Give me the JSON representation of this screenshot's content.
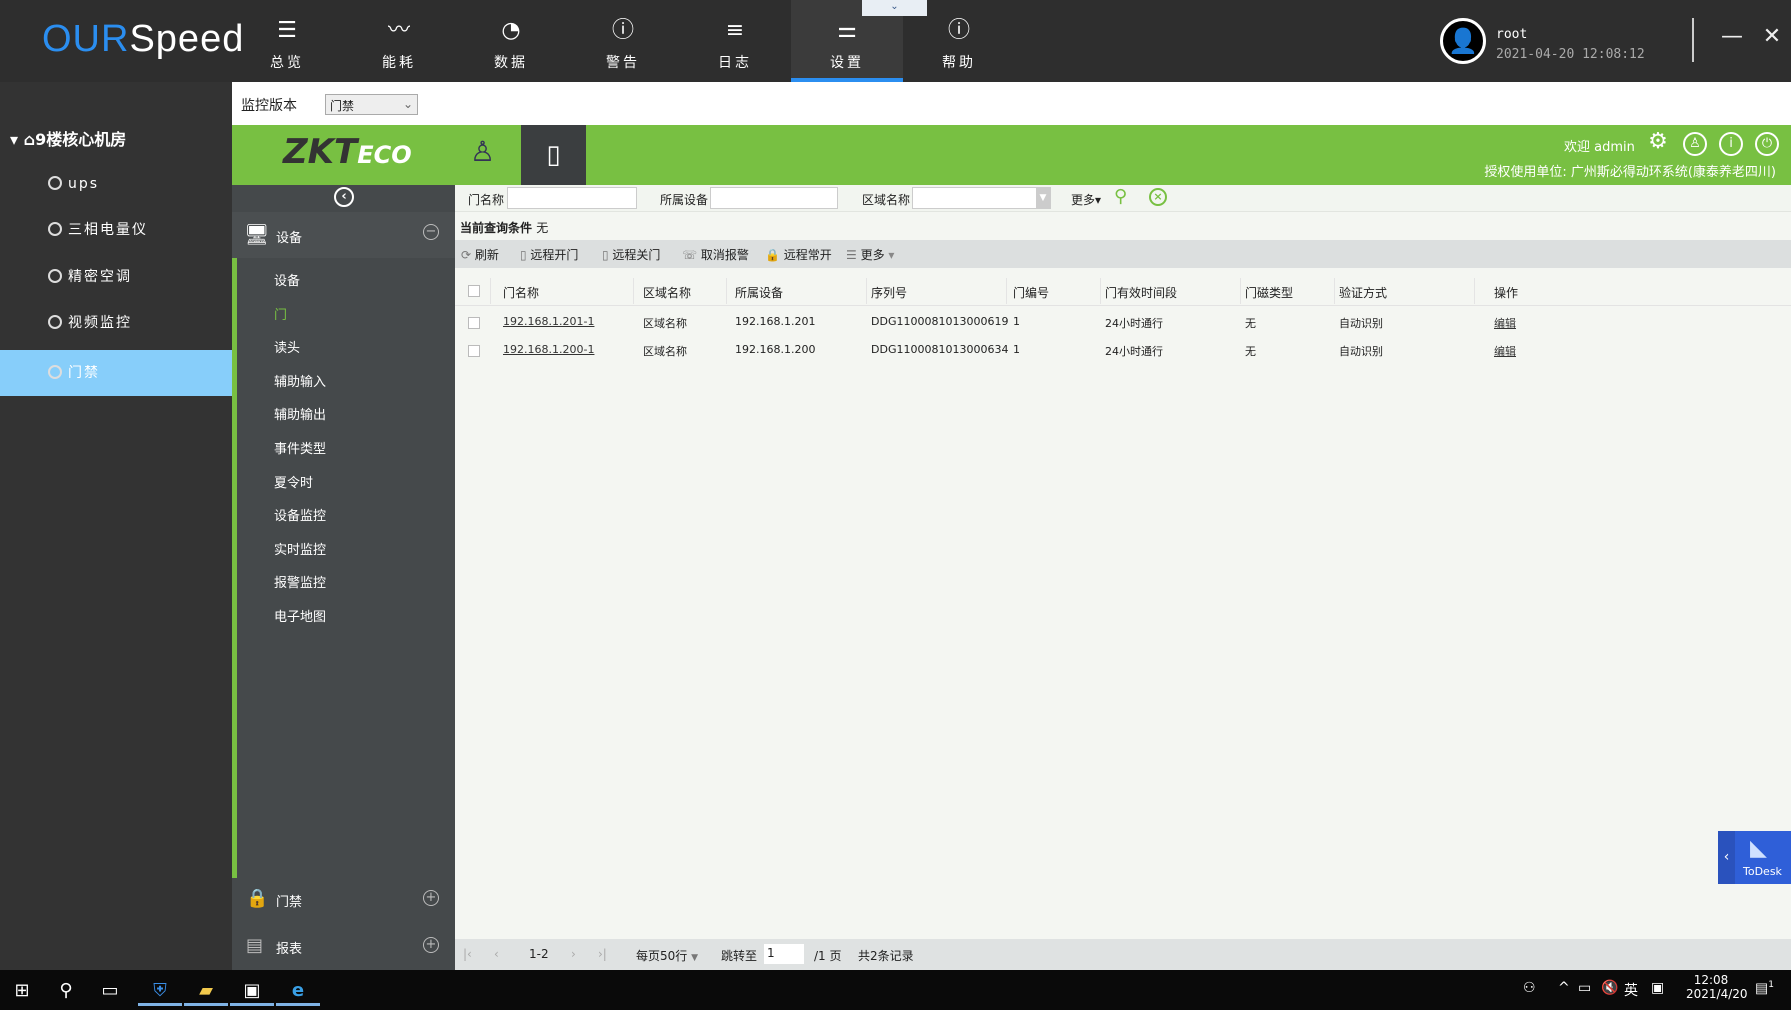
{
  "app": {
    "logo_our": "OUR",
    "logo_speed": "Speed"
  },
  "nav": [
    {
      "label": "总览",
      "icon": "list-icon"
    },
    {
      "label": "能耗",
      "icon": "pulse-icon"
    },
    {
      "label": "数据",
      "icon": "gauge-icon"
    },
    {
      "label": "警告",
      "icon": "alert-icon"
    },
    {
      "label": "日志",
      "icon": "log-icon"
    },
    {
      "label": "设置",
      "icon": "sliders-icon",
      "active": true
    },
    {
      "label": "帮助",
      "icon": "info-icon"
    }
  ],
  "user": {
    "name": "root",
    "datetime": "2021-04-20 12:08:12"
  },
  "sidebar": {
    "site": "9楼核心机房",
    "items": [
      {
        "label": "ups"
      },
      {
        "label": "三相电量仪"
      },
      {
        "label": "精密空调"
      },
      {
        "label": "视频监控"
      },
      {
        "label": "门禁",
        "active": true
      }
    ]
  },
  "version": {
    "label": "监控版本",
    "selected": "门禁"
  },
  "zk": {
    "brand_zk": "ZKT",
    "brand_eco": "ECO",
    "welcome": "欢迎 admin",
    "license": "授权使用单位: 广州斯必得动环系统(康泰养老四川)"
  },
  "panel": {
    "device_header": "设备",
    "sub_items": [
      "设备",
      "门",
      "读头",
      "辅助输入",
      "辅助输出",
      "事件类型",
      "夏令时",
      "设备监控",
      "实时监控",
      "报警监控",
      "电子地图"
    ],
    "active_sub": "门",
    "sections": [
      "门禁",
      "报表"
    ]
  },
  "filter": {
    "door_name": "门名称",
    "device": "所属设备",
    "area": "区域名称",
    "more": "更多▾",
    "condition_label": "当前查询条件",
    "condition_value": "无"
  },
  "toolbar": [
    "刷新",
    "远程开门",
    "远程关门",
    "取消报警",
    "远程常开",
    "更多"
  ],
  "table": {
    "headers": [
      "门名称",
      "区域名称",
      "所属设备",
      "序列号",
      "门编号",
      "门有效时间段",
      "门磁类型",
      "验证方式",
      "操作"
    ],
    "rows": [
      [
        "192.168.1.201-1",
        "区域名称",
        "192.168.1.201",
        "DDG1100081013000619",
        "1",
        "24小时通行",
        "无",
        "自动识别",
        "编辑"
      ],
      [
        "192.168.1.200-1",
        "区域名称",
        "192.168.1.200",
        "DDG1100081013000634",
        "1",
        "24小时通行",
        "无",
        "自动识别",
        "编辑"
      ]
    ]
  },
  "pager": {
    "range": "1-2",
    "per_page": "每页50行",
    "jump_label": "跳转至",
    "page_value": "1",
    "total_pages": "/1 页",
    "total": "共2条记录"
  },
  "todesk": {
    "label": "ToDesk"
  },
  "taskbar": {
    "time": "12:08",
    "date": "2021/4/20",
    "ime": "英",
    "notifications": "1"
  },
  "colors": {
    "accent_green": "#78c042",
    "nav_blue": "#2b8ef0",
    "sidebar_active": "#87cefa",
    "todesk": "#2f5fd8"
  }
}
